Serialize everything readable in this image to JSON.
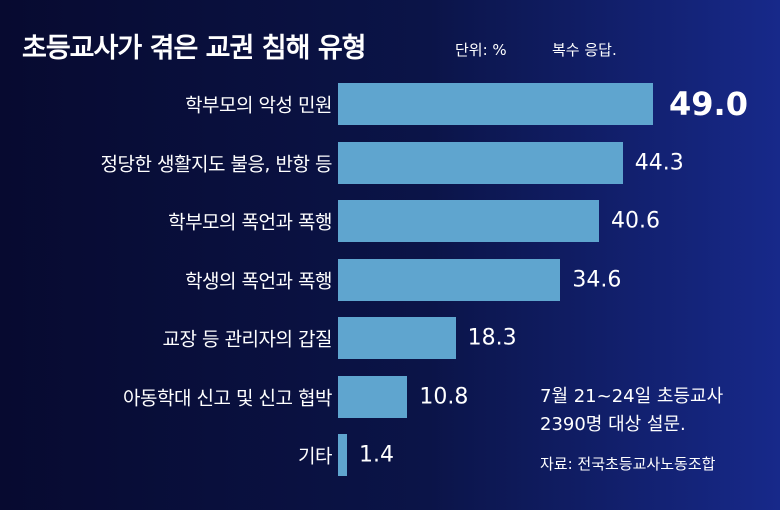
{
  "chart_data": {
    "type": "bar",
    "orientation": "horizontal",
    "title": "초등교사가 겪은 교권 침해 유형",
    "unit": "단위: %",
    "note": "복수 응답.",
    "categories": [
      "학부모의 악성 민원",
      "정당한 생활지도 불응, 반항 등",
      "학부모의 폭언과 폭행",
      "학생의 폭언과 폭행",
      "교장 등 관리자의 갑질",
      "아동학대 신고 및 신고 협박",
      "기타"
    ],
    "values": [
      49.0,
      44.3,
      40.6,
      34.6,
      18.3,
      10.8,
      1.4
    ],
    "value_labels": [
      "49.0",
      "44.3",
      "40.6",
      "34.6",
      "18.3",
      "10.8",
      "1.4"
    ],
    "xlim": [
      0,
      49
    ],
    "grid": false,
    "survey_line1": "7월 21~24일 초등교사",
    "survey_line2": "2390명 대상 설문.",
    "source": "자료: 전국초등교사노동조합"
  },
  "colors": {
    "bar": "#5fa5cf",
    "background": "#0b1448"
  }
}
